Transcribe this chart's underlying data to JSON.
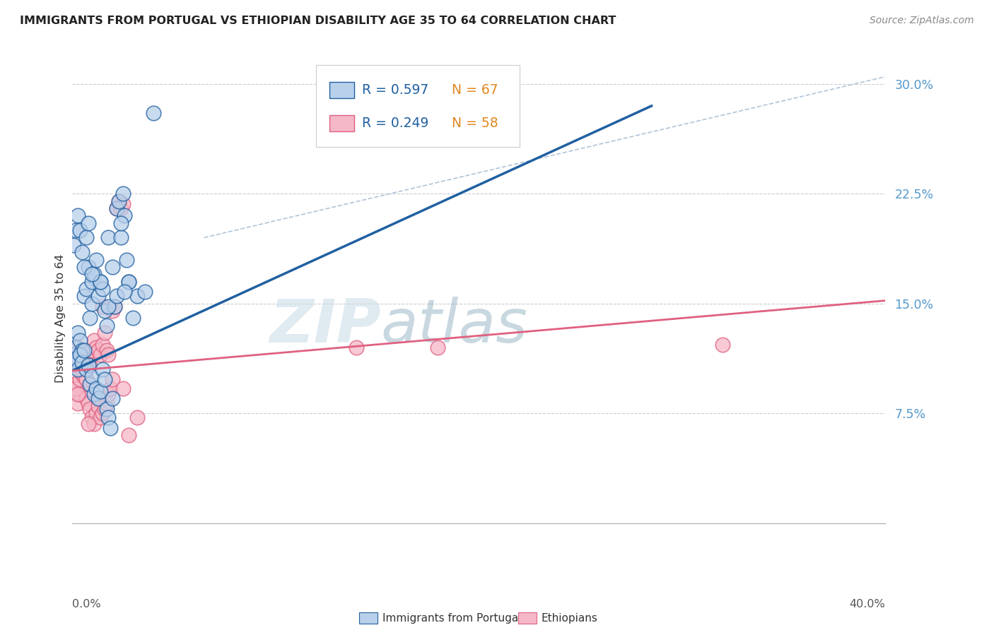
{
  "title": "IMMIGRANTS FROM PORTUGAL VS ETHIOPIAN DISABILITY AGE 35 TO 64 CORRELATION CHART",
  "source": "Source: ZipAtlas.com",
  "ylabel_label": "Disability Age 35 to 64",
  "legend_label1": "Immigrants from Portugal",
  "legend_label2": "Ethiopians",
  "legend_r1": "R = 0.597",
  "legend_n1": "N = 67",
  "legend_r2": "R = 0.249",
  "legend_n2": "N = 58",
  "watermark_zip": "ZIP",
  "watermark_atlas": "atlas",
  "color_portugal": "#b8d0ea",
  "color_ethiopia": "#f5b8c8",
  "color_line_portugal": "#2060a0",
  "color_line_ethiopia": "#e06080",
  "color_dashed": "#b0c4d8",
  "ytick_values": [
    0.075,
    0.15,
    0.225,
    0.3
  ],
  "ytick_labels": [
    "7.5%",
    "15.0%",
    "22.5%",
    "30.0%"
  ],
  "xlim": [
    0.0,
    0.4
  ],
  "ylim": [
    -0.04,
    0.32
  ],
  "portugal_line_x": [
    0.0,
    0.285
  ],
  "portugal_line_y": [
    0.104,
    0.285
  ],
  "ethiopia_line_x": [
    0.0,
    0.4
  ],
  "ethiopia_line_y": [
    0.104,
    0.152
  ],
  "dashed_line_x": [
    0.065,
    0.4
  ],
  "dashed_line_y": [
    0.195,
    0.305
  ],
  "portugal_x": [
    0.001,
    0.002,
    0.003,
    0.003,
    0.004,
    0.005,
    0.006,
    0.007,
    0.008,
    0.009,
    0.01,
    0.01,
    0.011,
    0.012,
    0.013,
    0.014,
    0.015,
    0.016,
    0.017,
    0.018,
    0.002,
    0.003,
    0.004,
    0.005,
    0.006,
    0.007,
    0.008,
    0.009,
    0.01,
    0.011,
    0.012,
    0.013,
    0.014,
    0.015,
    0.016,
    0.017,
    0.018,
    0.019,
    0.02,
    0.021,
    0.022,
    0.023,
    0.024,
    0.025,
    0.026,
    0.027,
    0.028,
    0.001,
    0.002,
    0.003,
    0.004,
    0.005,
    0.006,
    0.007,
    0.008,
    0.014,
    0.018,
    0.02,
    0.024,
    0.028,
    0.032,
    0.036,
    0.04,
    0.022,
    0.026,
    0.03,
    0.01
  ],
  "portugal_y": [
    0.115,
    0.12,
    0.13,
    0.11,
    0.125,
    0.118,
    0.155,
    0.16,
    0.175,
    0.14,
    0.15,
    0.165,
    0.17,
    0.18,
    0.155,
    0.165,
    0.16,
    0.145,
    0.135,
    0.195,
    0.112,
    0.105,
    0.115,
    0.11,
    0.118,
    0.105,
    0.108,
    0.095,
    0.1,
    0.088,
    0.092,
    0.085,
    0.09,
    0.105,
    0.098,
    0.078,
    0.072,
    0.065,
    0.085,
    0.148,
    0.215,
    0.22,
    0.195,
    0.225,
    0.21,
    0.18,
    0.165,
    0.19,
    0.2,
    0.21,
    0.2,
    0.185,
    0.175,
    0.195,
    0.205,
    0.165,
    0.148,
    0.175,
    0.205,
    0.165,
    0.155,
    0.158,
    0.28,
    0.155,
    0.158,
    0.14,
    0.17
  ],
  "ethiopia_x": [
    0.001,
    0.002,
    0.003,
    0.004,
    0.005,
    0.006,
    0.007,
    0.008,
    0.009,
    0.01,
    0.011,
    0.012,
    0.013,
    0.014,
    0.015,
    0.016,
    0.017,
    0.018,
    0.002,
    0.003,
    0.004,
    0.005,
    0.006,
    0.007,
    0.008,
    0.009,
    0.01,
    0.011,
    0.012,
    0.013,
    0.014,
    0.015,
    0.016,
    0.017,
    0.018,
    0.019,
    0.02,
    0.021,
    0.022,
    0.023,
    0.024,
    0.025,
    0.001,
    0.002,
    0.003,
    0.004,
    0.005,
    0.006,
    0.007,
    0.008,
    0.015,
    0.02,
    0.025,
    0.028,
    0.032,
    0.32,
    0.18,
    0.14
  ],
  "ethiopia_y": [
    0.108,
    0.112,
    0.12,
    0.118,
    0.115,
    0.11,
    0.115,
    0.112,
    0.108,
    0.118,
    0.125,
    0.12,
    0.118,
    0.115,
    0.122,
    0.13,
    0.118,
    0.115,
    0.095,
    0.082,
    0.088,
    0.095,
    0.09,
    0.085,
    0.082,
    0.078,
    0.072,
    0.068,
    0.075,
    0.08,
    0.072,
    0.075,
    0.078,
    0.082,
    0.088,
    0.092,
    0.145,
    0.148,
    0.215,
    0.22,
    0.215,
    0.218,
    0.095,
    0.092,
    0.088,
    0.098,
    0.102,
    0.1,
    0.098,
    0.068,
    0.148,
    0.098,
    0.092,
    0.06,
    0.072,
    0.122,
    0.12,
    0.12
  ],
  "title_color": "#222222",
  "source_color": "#888888",
  "ytick_color": "#5599cc",
  "xlabel_color": "#555555",
  "watermark_color": "#ccdde8"
}
